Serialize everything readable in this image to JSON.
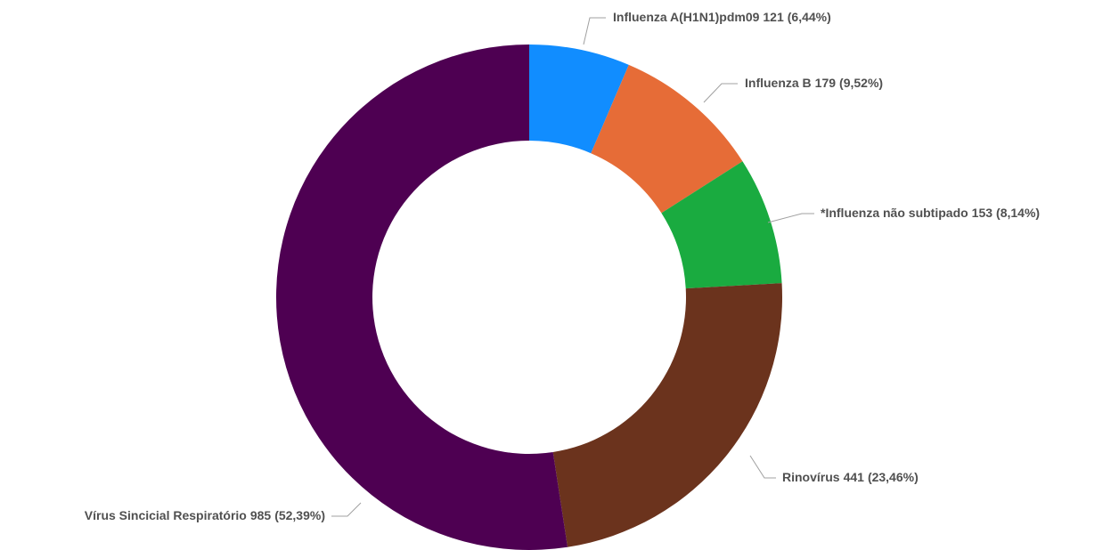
{
  "chart_data": {
    "type": "donut",
    "categories": [
      "Influenza A(H1N1)pdm09",
      "Influenza B",
      "*Influenza não subtipado",
      "Rinovírus",
      "Vírus Sincicial Respiratório"
    ],
    "values": [
      121,
      179,
      153,
      441,
      985
    ],
    "percentages": [
      6.44,
      9.52,
      8.14,
      23.46,
      52.39
    ],
    "percentage_labels": [
      "(6,44%)",
      "(9,52%)",
      "(8,14%)",
      "(23,46%)",
      "(52,39%)"
    ],
    "colors": [
      "#118dff",
      "#e66c37",
      "#1aab40",
      "#6b331d",
      "#4e0052"
    ]
  }
}
